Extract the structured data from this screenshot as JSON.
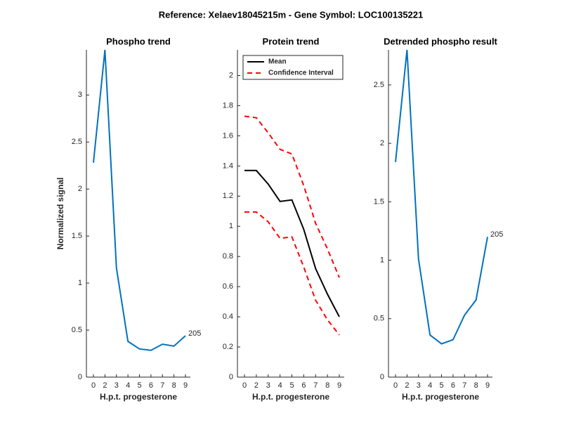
{
  "title": "Reference:  Xelaev18045215m - Gene Symbol:  LOC100135221",
  "chart_data": [
    {
      "type": "line",
      "title": "Phospho trend",
      "xlabel": "H.p.t. progesterone",
      "ylabel": "Normalized signal",
      "categories": [
        "0",
        "2",
        "3",
        "4",
        "5",
        "6",
        "7",
        "8",
        "9"
      ],
      "series": [
        {
          "name": "Phospho",
          "color": "#0072bd",
          "style": "solid",
          "values": [
            2.28,
            3.48,
            1.16,
            0.38,
            0.3,
            0.285,
            0.35,
            0.33,
            0.44
          ]
        }
      ],
      "annotation": "205",
      "ylim": [
        0,
        3.48
      ],
      "yticks": [
        0,
        0.5,
        1,
        1.5,
        2,
        2.5,
        3
      ]
    },
    {
      "type": "line",
      "title": "Protein trend",
      "xlabel": "H.p.t. progesterone",
      "categories": [
        "0",
        "2",
        "3",
        "4",
        "5",
        "6",
        "7",
        "8",
        "9"
      ],
      "series": [
        {
          "name": "Mean",
          "color": "#000000",
          "style": "solid",
          "values": [
            1.37,
            1.37,
            1.28,
            1.165,
            1.175,
            0.98,
            0.72,
            0.55,
            0.4
          ]
        },
        {
          "name": "Confidence Interval",
          "color": "#ff0000",
          "style": "dashed",
          "upper": [
            1.73,
            1.72,
            1.62,
            1.51,
            1.48,
            1.27,
            1.02,
            0.85,
            0.66
          ],
          "lower": [
            1.095,
            1.095,
            1.03,
            0.92,
            0.93,
            0.73,
            0.51,
            0.38,
            0.28
          ]
        }
      ],
      "legend": "upper left",
      "ylim": [
        0,
        2.17
      ],
      "yticks": [
        0,
        0.2,
        0.4,
        0.6,
        0.8,
        1,
        1.2,
        1.4,
        1.6,
        1.8,
        2
      ]
    },
    {
      "type": "line",
      "title": "Detrended phospho result",
      "xlabel": "H.p.t. progesterone",
      "categories": [
        "0",
        "2",
        "3",
        "4",
        "5",
        "6",
        "7",
        "8",
        "9"
      ],
      "series": [
        {
          "name": "Detrended",
          "color": "#0072bd",
          "style": "solid",
          "values": [
            1.84,
            2.8,
            1.01,
            0.36,
            0.285,
            0.32,
            0.53,
            0.66,
            1.2
          ]
        }
      ],
      "annotation": "205",
      "ylim": [
        0,
        2.8
      ],
      "yticks": [
        0,
        0.5,
        1,
        1.5,
        2,
        2.5
      ]
    }
  ]
}
